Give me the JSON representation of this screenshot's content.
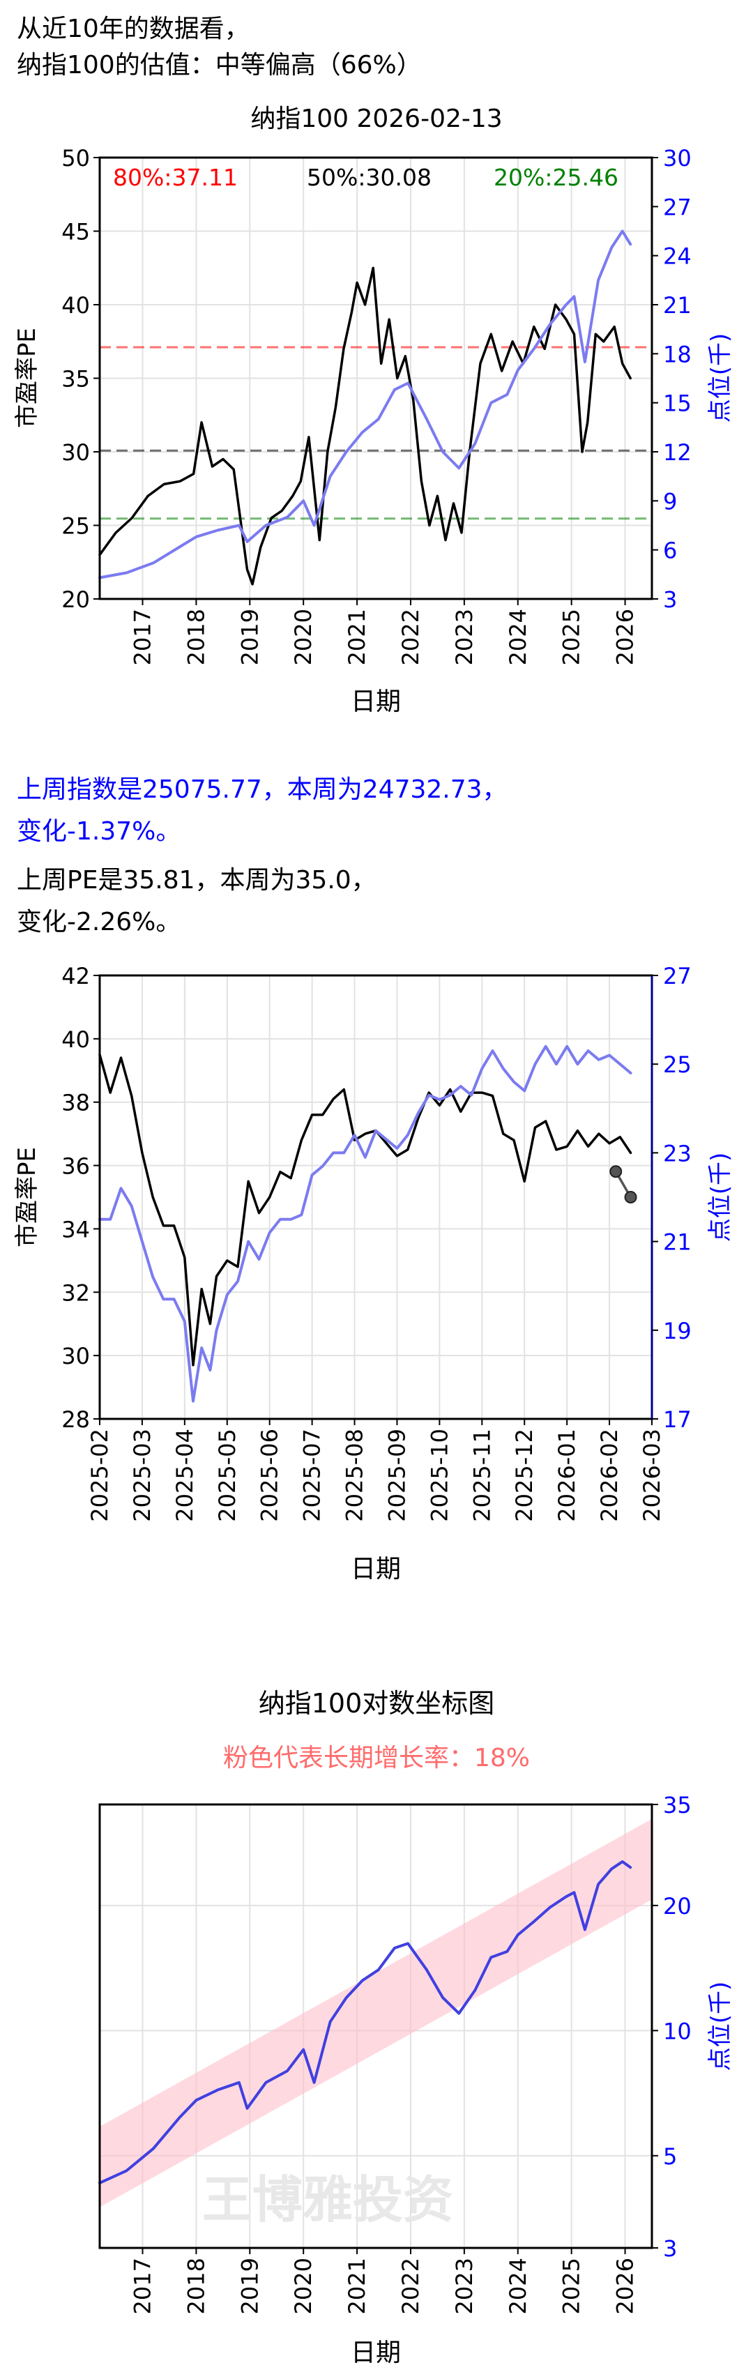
{
  "header": {
    "line1": "从近10年的数据看，",
    "line2": "纳指100的估值：中等偏高（66%）"
  },
  "summary": {
    "index_line1": "上周指数是25075.77，本周为24732.73，",
    "index_line2": "变化-1.37%。",
    "pe_line1": "上周PE是35.81，本周为35.0，",
    "pe_line2": "变化-2.26%。",
    "index_color": "#0000ff"
  },
  "chart_data": [
    {
      "type": "line",
      "title": "纳指100 2026-02-13",
      "xlabel": "日期",
      "ylabel": "市盈率PE",
      "y2label": "点位(千)",
      "ylim": [
        20,
        50
      ],
      "y2lim": [
        3,
        30
      ],
      "yticks": [
        "20",
        "25",
        "30",
        "35",
        "40",
        "45",
        "50"
      ],
      "y2ticks": [
        "3",
        "6",
        "9",
        "12",
        "15",
        "18",
        "21",
        "24",
        "27",
        "30"
      ],
      "xlim": [
        2016.2,
        2026.5
      ],
      "xticks": [
        "2017",
        "2018",
        "2019",
        "2020",
        "2021",
        "2022",
        "2023",
        "2024",
        "2025",
        "2026"
      ],
      "grid": true,
      "annotations": [
        {
          "text": "80%:37.11",
          "value": 37.11,
          "color": "#ff0000"
        },
        {
          "text": "50%:30.08",
          "value": 30.08,
          "color": "#000000"
        },
        {
          "text": "20%:25.46",
          "value": 25.46,
          "color": "#008000"
        }
      ],
      "series": [
        {
          "axis": "left",
          "color": "#000000",
          "x": [
            2016.2,
            2016.5,
            2016.8,
            2017.1,
            2017.4,
            2017.7,
            2017.95,
            2018.1,
            2018.3,
            2018.5,
            2018.7,
            2018.95,
            2019.05,
            2019.2,
            2019.4,
            2019.6,
            2019.8,
            2019.95,
            2020.1,
            2020.2,
            2020.3,
            2020.45,
            2020.6,
            2020.75,
            2020.9,
            2021.0,
            2021.15,
            2021.3,
            2021.45,
            2021.6,
            2021.75,
            2021.9,
            2022.05,
            2022.2,
            2022.35,
            2022.5,
            2022.65,
            2022.8,
            2022.95,
            2023.1,
            2023.3,
            2023.5,
            2023.7,
            2023.9,
            2024.1,
            2024.3,
            2024.5,
            2024.7,
            2024.9,
            2025.05,
            2025.2,
            2025.3,
            2025.45,
            2025.6,
            2025.8,
            2025.95,
            2026.1
          ],
          "y": [
            23.0,
            24.5,
            25.5,
            27.0,
            27.8,
            28.0,
            28.5,
            32.0,
            29.0,
            29.5,
            28.8,
            22.0,
            21.0,
            23.5,
            25.5,
            26.0,
            27.0,
            28.0,
            31.0,
            27.5,
            24.0,
            30.0,
            33.0,
            37.0,
            39.5,
            41.5,
            40.0,
            42.5,
            36.0,
            39.0,
            35.0,
            36.5,
            33.5,
            28.0,
            25.0,
            27.0,
            24.0,
            26.5,
            24.5,
            30.0,
            36.0,
            38.0,
            35.5,
            37.5,
            36.0,
            38.5,
            37.0,
            40.0,
            39.0,
            38.0,
            30.0,
            32.0,
            38.0,
            37.5,
            38.5,
            36.0,
            35.0
          ]
        },
        {
          "axis": "right",
          "color": "#7b7bf0",
          "x": [
            2016.2,
            2016.7,
            2017.2,
            2017.7,
            2018.0,
            2018.4,
            2018.8,
            2018.95,
            2019.3,
            2019.7,
            2020.0,
            2020.2,
            2020.5,
            2020.8,
            2021.1,
            2021.4,
            2021.7,
            2021.95,
            2022.3,
            2022.6,
            2022.9,
            2023.2,
            2023.5,
            2023.8,
            2024.0,
            2024.3,
            2024.6,
            2024.9,
            2025.05,
            2025.25,
            2025.5,
            2025.75,
            2025.95,
            2026.1
          ],
          "y": [
            4.3,
            4.6,
            5.2,
            6.2,
            6.8,
            7.2,
            7.5,
            6.5,
            7.5,
            8.0,
            9.0,
            7.5,
            10.5,
            12.0,
            13.2,
            14.0,
            15.8,
            16.2,
            14.0,
            12.0,
            11.0,
            12.5,
            15.0,
            15.5,
            17.0,
            18.3,
            19.8,
            21.0,
            21.5,
            17.5,
            22.5,
            24.5,
            25.5,
            24.7
          ]
        }
      ]
    },
    {
      "type": "line",
      "xlabel": "日期",
      "ylabel": "市盈率PE",
      "y2label": "点位(千)",
      "ylim": [
        28,
        42
      ],
      "y2lim": [
        17,
        27
      ],
      "yticks": [
        "28",
        "30",
        "32",
        "34",
        "36",
        "38",
        "40",
        "42"
      ],
      "y2ticks": [
        "17",
        "19",
        "21",
        "23",
        "25",
        "27"
      ],
      "xlim": [
        0,
        13
      ],
      "xticks": [
        "2025-02",
        "2025-03",
        "2025-04",
        "2025-05",
        "2025-06",
        "2025-07",
        "2025-08",
        "2025-09",
        "2025-10",
        "2025-11",
        "2025-12",
        "2026-01",
        "2026-02",
        "2026-03"
      ],
      "grid": true,
      "series": [
        {
          "axis": "left",
          "color": "#000000",
          "x": [
            0,
            0.25,
            0.5,
            0.75,
            1,
            1.25,
            1.5,
            1.75,
            2.0,
            2.2,
            2.4,
            2.6,
            2.75,
            3.0,
            3.25,
            3.5,
            3.75,
            4.0,
            4.25,
            4.5,
            4.75,
            5.0,
            5.25,
            5.5,
            5.75,
            6.0,
            6.25,
            6.5,
            6.75,
            7.0,
            7.25,
            7.5,
            7.75,
            8.0,
            8.25,
            8.5,
            8.75,
            9.0,
            9.25,
            9.5,
            9.75,
            10.0,
            10.25,
            10.5,
            10.75,
            11.0,
            11.25,
            11.5,
            11.75,
            12.0,
            12.25,
            12.5
          ],
          "y": [
            39.5,
            38.3,
            39.4,
            38.2,
            36.4,
            35.0,
            34.1,
            34.1,
            33.1,
            29.7,
            32.1,
            31.0,
            32.5,
            33.0,
            32.8,
            35.5,
            34.5,
            35.0,
            35.8,
            35.6,
            36.8,
            37.6,
            37.6,
            38.1,
            38.4,
            36.8,
            37.0,
            37.1,
            36.7,
            36.3,
            36.5,
            37.5,
            38.3,
            37.9,
            38.4,
            37.7,
            38.3,
            38.3,
            38.2,
            37.0,
            36.8,
            35.5,
            37.2,
            37.4,
            36.5,
            36.6,
            37.1,
            36.6,
            37.0,
            36.7,
            36.9,
            36.4
          ]
        },
        {
          "axis": "right",
          "color": "#7b7bf0",
          "x": [
            0,
            0.25,
            0.5,
            0.75,
            1,
            1.25,
            1.5,
            1.75,
            2.0,
            2.2,
            2.4,
            2.6,
            2.75,
            3.0,
            3.25,
            3.5,
            3.75,
            4.0,
            4.25,
            4.5,
            4.75,
            5.0,
            5.25,
            5.5,
            5.75,
            6.0,
            6.25,
            6.5,
            6.75,
            7.0,
            7.25,
            7.5,
            7.75,
            8.0,
            8.25,
            8.5,
            8.75,
            9.0,
            9.25,
            9.5,
            9.75,
            10.0,
            10.25,
            10.5,
            10.75,
            11.0,
            11.25,
            11.5,
            11.75,
            12.0,
            12.25,
            12.5
          ],
          "y": [
            21.5,
            21.5,
            22.2,
            21.8,
            21.0,
            20.2,
            19.7,
            19.7,
            19.2,
            17.4,
            18.6,
            18.1,
            19.0,
            19.8,
            20.1,
            21.0,
            20.6,
            21.2,
            21.5,
            21.5,
            21.6,
            22.5,
            22.7,
            23.0,
            23.0,
            23.4,
            22.9,
            23.5,
            23.3,
            23.1,
            23.4,
            23.9,
            24.3,
            24.2,
            24.3,
            24.5,
            24.3,
            24.9,
            25.3,
            24.9,
            24.6,
            24.4,
            25.0,
            25.4,
            25.0,
            25.4,
            25.0,
            25.3,
            25.1,
            25.2,
            25.0,
            24.8
          ]
        },
        {
          "axis": "left",
          "color": "#555555",
          "marker": true,
          "x": [
            12.15,
            12.5
          ],
          "y": [
            35.81,
            35.0
          ]
        }
      ]
    },
    {
      "type": "line",
      "title": "纳指100对数坐标图",
      "subtitle": "粉色代表长期增长率：18%",
      "subtitle_color": "#ff6b6b",
      "xlabel": "日期",
      "y2label": "点位(千)",
      "y2scale": "log",
      "y2lim": [
        3,
        35
      ],
      "y2ticks": [
        "3",
        "5",
        "10",
        "20",
        "35"
      ],
      "xlim": [
        2016.2,
        2026.5
      ],
      "xticks": [
        "2017",
        "2018",
        "2019",
        "2020",
        "2021",
        "2022",
        "2023",
        "2024",
        "2025",
        "2026"
      ],
      "grid": true,
      "watermark": "王博雅投资",
      "band": {
        "x": [
          2016.2,
          2026.5
        ],
        "center_start": 4.7,
        "growth": 0.18,
        "color": "#ffc0cb"
      },
      "series": [
        {
          "axis": "right",
          "color": "#4040e0",
          "x": [
            2016.2,
            2016.7,
            2017.2,
            2017.7,
            2018.0,
            2018.4,
            2018.8,
            2018.95,
            2019.3,
            2019.7,
            2020.0,
            2020.2,
            2020.5,
            2020.8,
            2021.1,
            2021.4,
            2021.7,
            2021.95,
            2022.3,
            2022.6,
            2022.9,
            2023.2,
            2023.5,
            2023.8,
            2024.0,
            2024.3,
            2024.6,
            2024.9,
            2025.05,
            2025.25,
            2025.5,
            2025.75,
            2025.95,
            2026.1
          ],
          "y": [
            4.3,
            4.6,
            5.2,
            6.2,
            6.8,
            7.2,
            7.5,
            6.5,
            7.5,
            8.0,
            9.0,
            7.5,
            10.5,
            12.0,
            13.2,
            14.0,
            15.8,
            16.2,
            14.0,
            12.0,
            11.0,
            12.5,
            15.0,
            15.5,
            17.0,
            18.3,
            19.8,
            21.0,
            21.5,
            17.5,
            22.5,
            24.5,
            25.5,
            24.7
          ]
        }
      ]
    }
  ]
}
